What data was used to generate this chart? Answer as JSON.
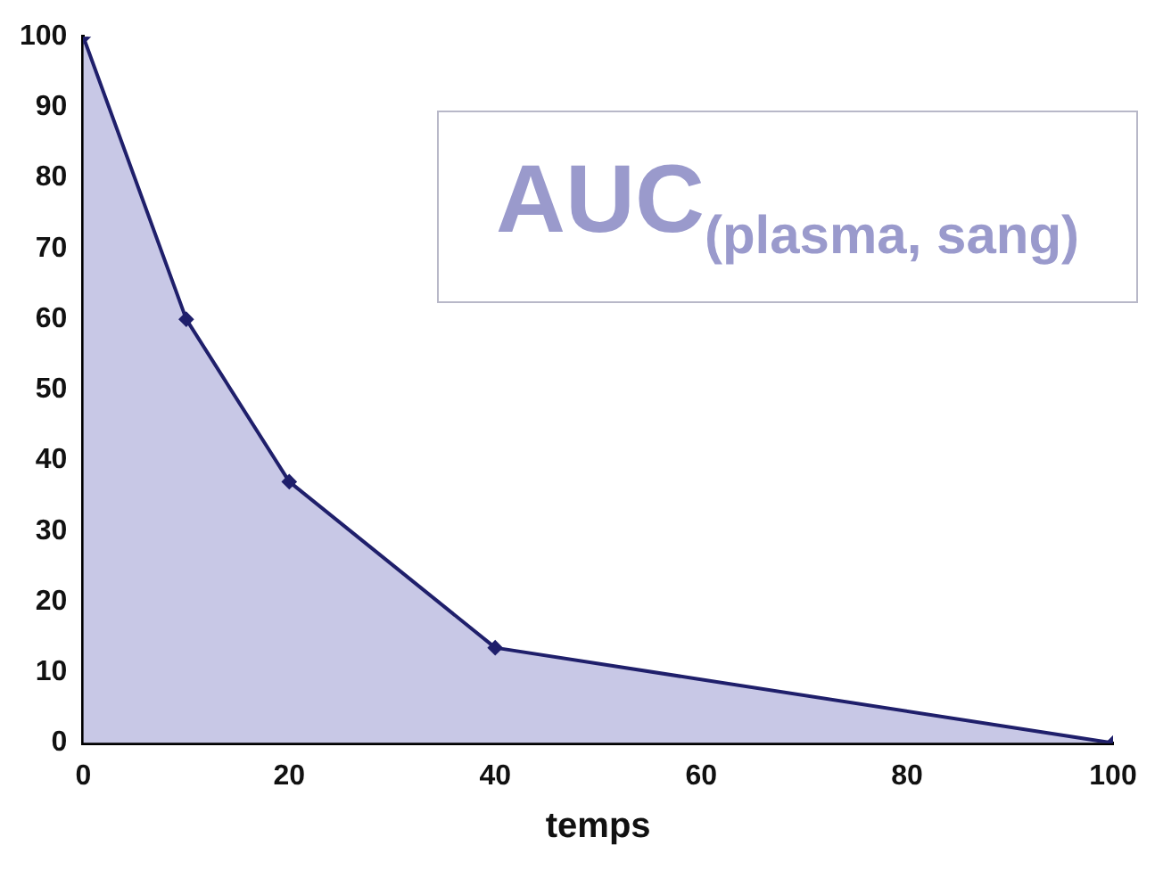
{
  "chart_data": {
    "type": "area",
    "xlabel": "temps",
    "x": [
      0,
      10,
      20,
      40,
      100
    ],
    "series": [
      {
        "color": "#1f1f6b",
        "values": [
          100,
          60,
          37,
          13.5,
          0
        ]
      }
    ],
    "xlim": [
      0,
      100
    ],
    "xticks": [
      0,
      20,
      40,
      60,
      80,
      100
    ],
    "ylim": [
      0,
      100
    ],
    "yticks": [
      0,
      10,
      20,
      30,
      40,
      50,
      60,
      70,
      80,
      90,
      100
    ],
    "grid": false,
    "legend": false,
    "marker": "diamond",
    "annotations": [
      "AUC$_{(plasma, sang)}$"
    ]
  }
}
